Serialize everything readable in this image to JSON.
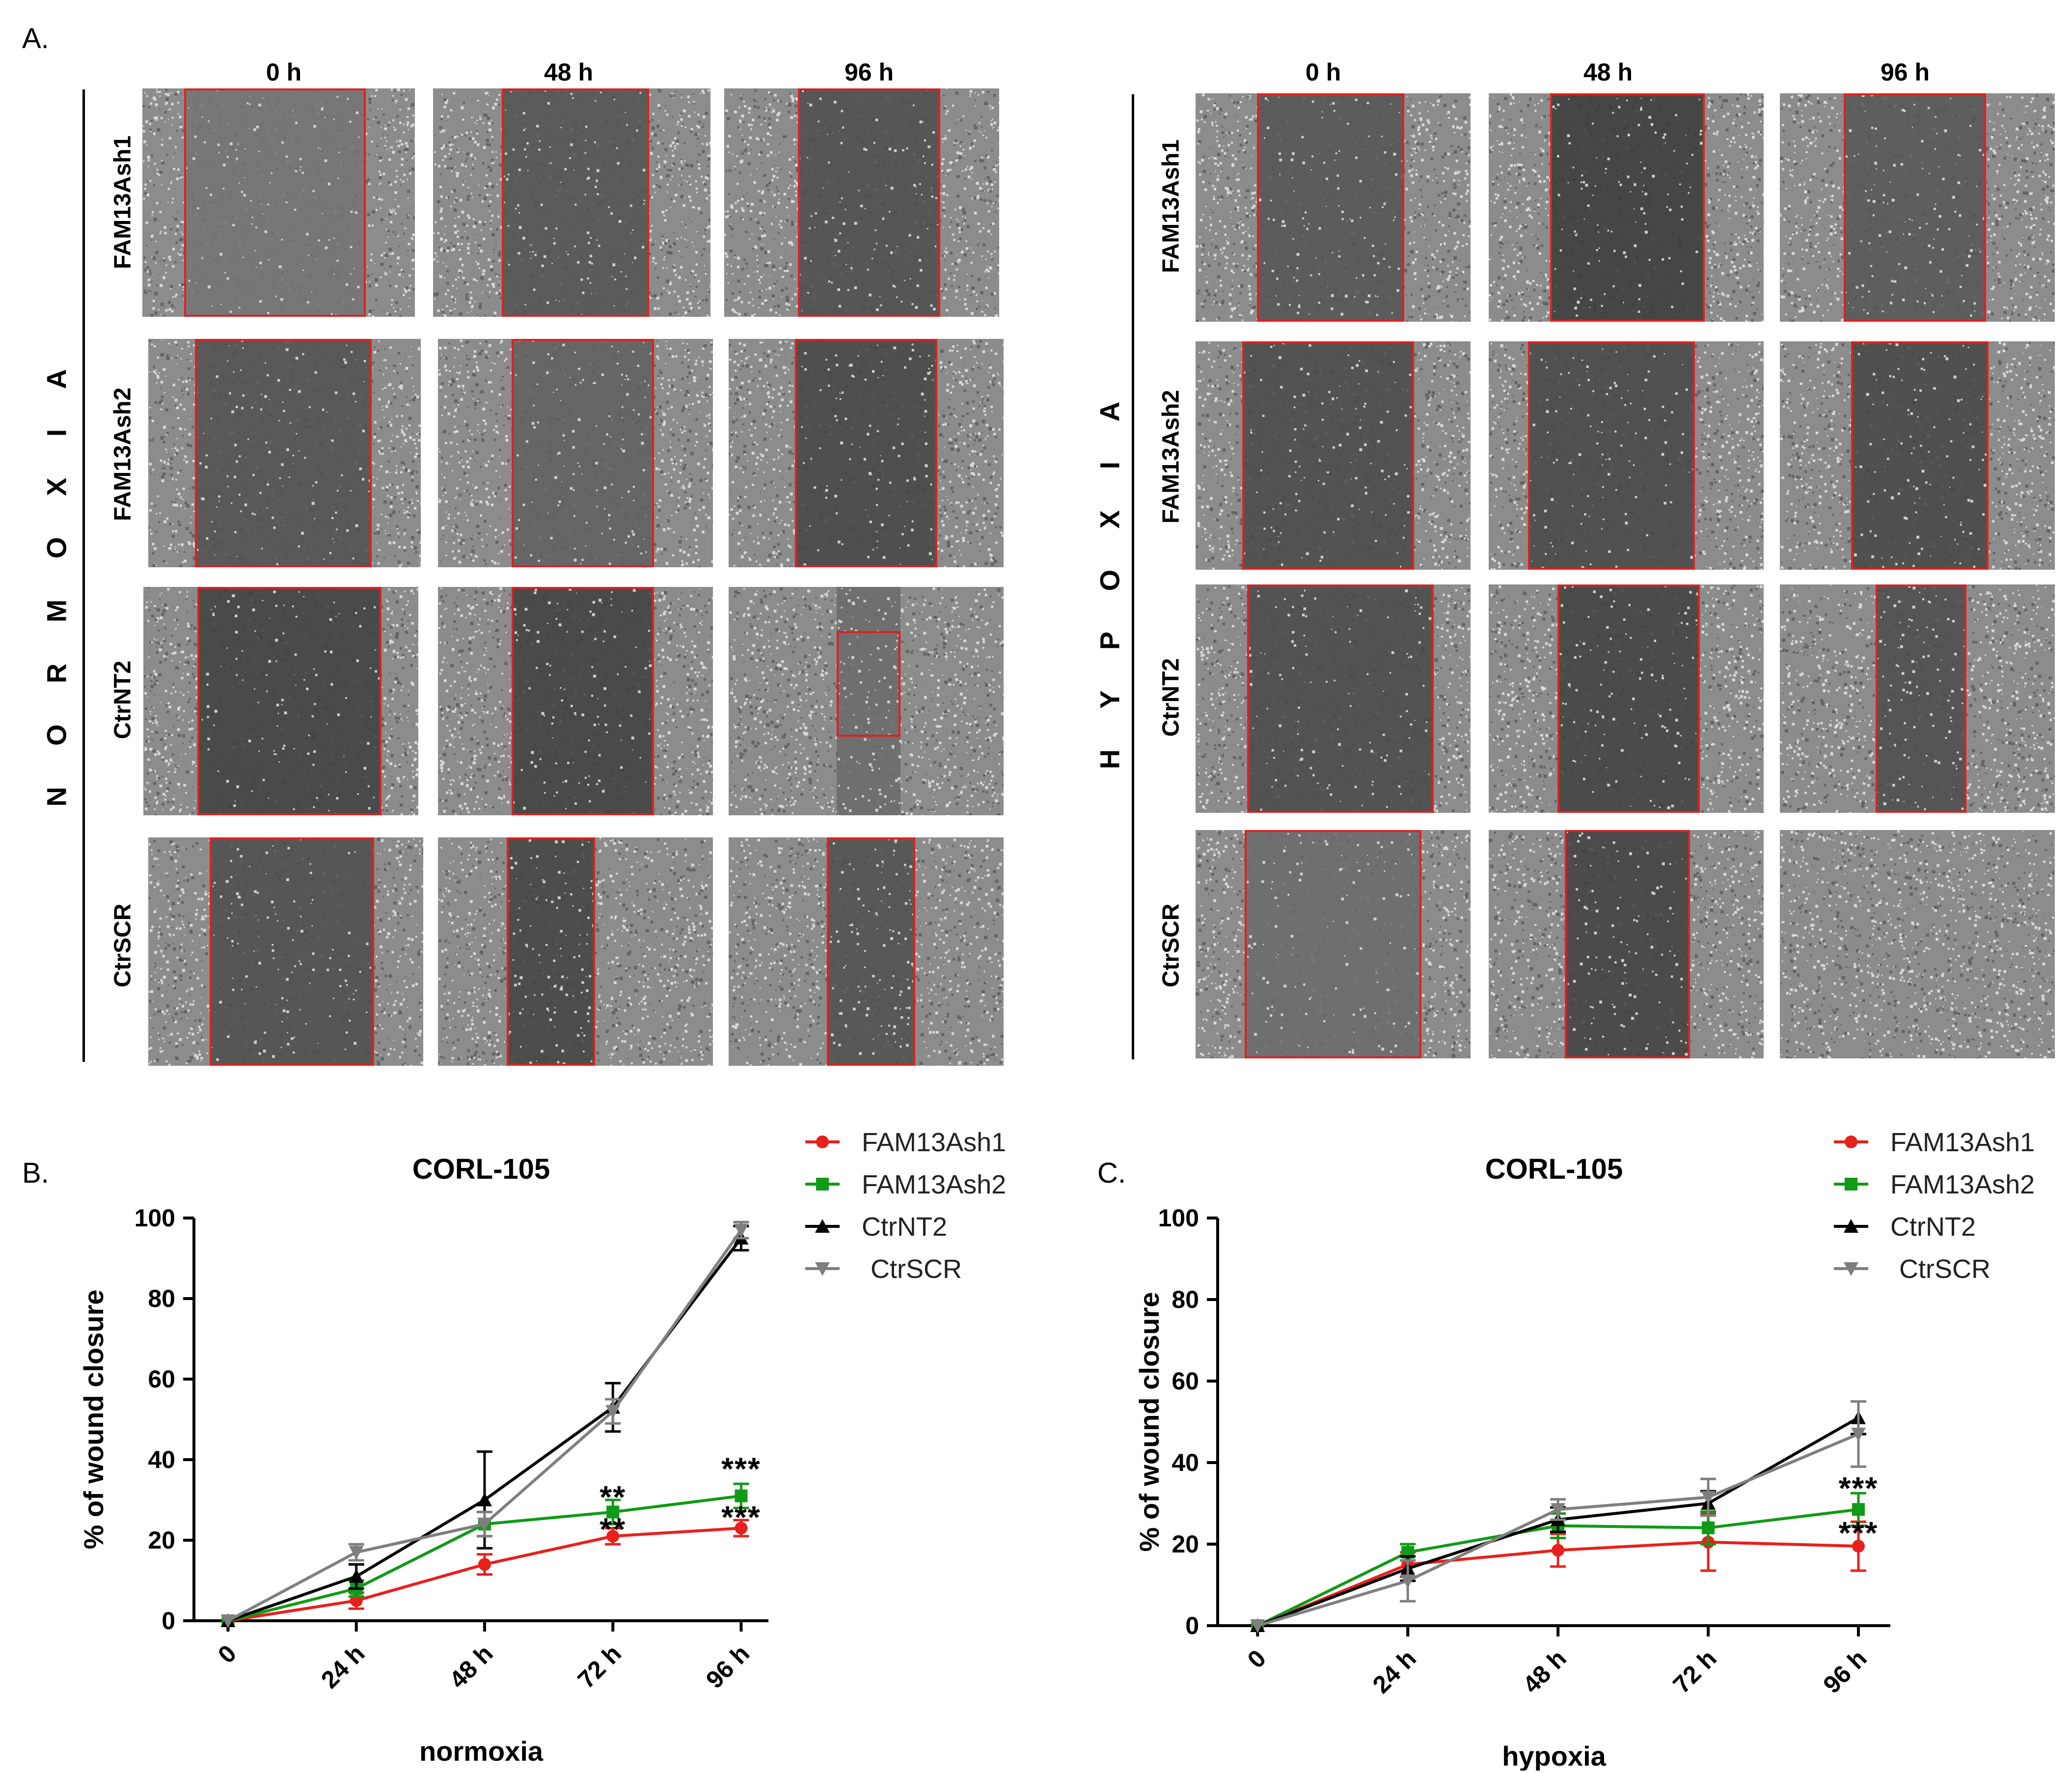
{
  "panel_a": {
    "letter": "A.",
    "groups": [
      {
        "condition": "N O R M O X I A",
        "time_labels": [
          "0 h",
          "48 h",
          "96 h"
        ],
        "rows": [
          "FAM13Ash1",
          "FAM13Ash2",
          "CtrNT2",
          "CtrSCR"
        ]
      },
      {
        "condition": "H Y P O X I A",
        "time_labels": [
          "0 h",
          "48 h",
          "96 h"
        ],
        "rows": [
          "FAM13Ash1",
          "FAM13Ash2",
          "CtrNT2",
          "CtrSCR"
        ]
      }
    ]
  },
  "legend": [
    {
      "name": "FAM13Ash1",
      "color": "#e8201c",
      "marker": "circle"
    },
    {
      "name": "FAM13Ash2",
      "color": "#119a17",
      "marker": "square"
    },
    {
      "name": "CtrNT2",
      "color": "#000000",
      "marker": "triangle-up"
    },
    {
      "name": "CtrSCR",
      "color": "#7f7f7f",
      "marker": "triangle-down"
    }
  ],
  "chart_data": [
    {
      "panel": "B.",
      "type": "line",
      "title": "CORL-105",
      "xlabel": "normoxia",
      "ylabel": "% of wound closure",
      "categories": [
        "0",
        "24 h",
        "48 h",
        "72 h",
        "96 h"
      ],
      "ylim": [
        0,
        100
      ],
      "yticks": [
        "0",
        "20",
        "40",
        "60",
        "80",
        "100"
      ],
      "series": [
        {
          "name": "FAM13Ash1",
          "values": [
            0,
            5,
            14,
            21,
            23
          ],
          "errors": [
            0,
            2,
            2.5,
            2,
            2
          ]
        },
        {
          "name": "FAM13Ash2",
          "values": [
            0,
            8,
            24,
            27,
            31
          ],
          "errors": [
            0,
            2,
            3,
            3,
            3
          ]
        },
        {
          "name": "CtrNT2",
          "values": [
            0,
            11,
            30,
            53,
            95
          ],
          "errors": [
            0,
            3,
            12,
            6,
            3
          ]
        },
        {
          "name": "CtrSCR",
          "values": [
            0,
            17,
            24,
            52,
            97
          ],
          "errors": [
            0,
            2,
            3,
            3,
            2
          ]
        }
      ],
      "annotations": [
        {
          "category": "72 h",
          "y": 31,
          "text": "**"
        },
        {
          "category": "72 h",
          "y": 23,
          "text": "**"
        },
        {
          "category": "96 h",
          "y": 38,
          "text": "***"
        },
        {
          "category": "96 h",
          "y": 26,
          "text": "***"
        }
      ]
    },
    {
      "panel": "C.",
      "type": "line",
      "title": "CORL-105",
      "xlabel": "hypoxia",
      "ylabel": "% of wound closure",
      "categories": [
        "0",
        "24 h",
        "48 h",
        "72 h",
        "96 h"
      ],
      "ylim": [
        0,
        100
      ],
      "yticks": [
        "0",
        "20",
        "40",
        "60",
        "80",
        "100"
      ],
      "series": [
        {
          "name": "FAM13Ash1",
          "values": [
            0,
            15,
            18.5,
            20.5,
            19.5
          ],
          "errors": [
            0,
            3,
            4,
            7,
            6
          ]
        },
        {
          "name": "FAM13Ash2",
          "values": [
            0,
            18,
            24.5,
            24,
            28.5
          ],
          "errors": [
            0,
            2,
            3,
            4,
            4
          ]
        },
        {
          "name": "CtrNT2",
          "values": [
            0,
            14,
            26,
            30,
            51
          ],
          "errors": [
            0,
            3,
            3,
            3,
            4
          ]
        },
        {
          "name": "CtrSCR",
          "values": [
            0,
            11,
            28.5,
            31.5,
            47
          ],
          "errors": [
            0,
            5,
            2.5,
            4.5,
            8
          ]
        }
      ],
      "annotations": [
        {
          "category": "96 h",
          "y": 34,
          "text": "***"
        },
        {
          "category": "96 h",
          "y": 23,
          "text": "***"
        }
      ]
    }
  ]
}
